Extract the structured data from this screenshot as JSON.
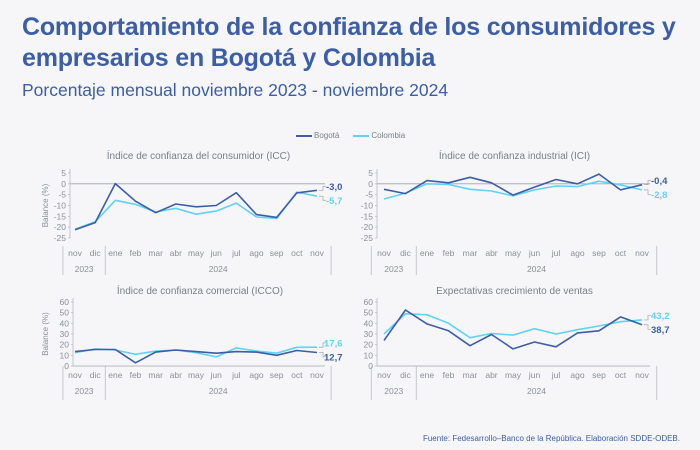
{
  "header": {
    "title": "Comportamiento de la confianza de los consumidores y empresarios en Bogotá y Colombia",
    "subtitle": "Porcentaje mensual noviembre 2023 - noviembre 2024"
  },
  "legend": [
    {
      "label": "Bogotá",
      "color": "#3b5ea6"
    },
    {
      "label": "Colombia",
      "color": "#5fd3f5"
    }
  ],
  "source": "Fuente: Fedesarrollo–Banco de la República. Elaboración SDDE-ODEB.",
  "chart_data": [
    {
      "type": "line",
      "title": "Índice de confianza del consumidor (ICC)",
      "ylabel": "Balance (%)",
      "xlabel": "",
      "ylim": [
        -25,
        5
      ],
      "yticks": [
        5,
        0,
        -5,
        -10,
        -15,
        -20,
        -25
      ],
      "zero_line": true,
      "categories": [
        "nov",
        "dic",
        "ene",
        "feb",
        "mar",
        "abr",
        "may",
        "jun",
        "jul",
        "ago",
        "sep",
        "oct",
        "nov"
      ],
      "year_groups": [
        {
          "label": "2023",
          "count": 2
        },
        {
          "label": "2024",
          "count": 11
        }
      ],
      "series": [
        {
          "name": "Bogotá",
          "color": "#3b5ea6",
          "values": [
            -21.2,
            -17.9,
            0.1,
            -8.0,
            -13.3,
            -9.3,
            -10.6,
            -10.0,
            -4.1,
            -14.2,
            -15.5,
            -4.2,
            -3.0
          ],
          "end_label": "-3,0"
        },
        {
          "name": "Colombia",
          "color": "#5fd3f5",
          "values": [
            -21.0,
            -17.5,
            -7.6,
            -9.5,
            -13.0,
            -11.3,
            -14.0,
            -12.6,
            -8.9,
            -15.3,
            -16.0,
            -3.8,
            -5.7
          ],
          "end_label": "-5,7"
        }
      ]
    },
    {
      "type": "line",
      "title": "Índice de confianza industrial (ICI)",
      "ylabel": "",
      "xlabel": "",
      "ylim": [
        -25,
        5
      ],
      "yticks": [
        5,
        0,
        -5,
        -10,
        -15,
        -20,
        -25
      ],
      "zero_line": true,
      "categories": [
        "nov",
        "dic",
        "ene",
        "feb",
        "mar",
        "abr",
        "may",
        "jun",
        "jul",
        "ago",
        "sep",
        "oct",
        "nov"
      ],
      "year_groups": [
        {
          "label": "2023",
          "count": 2
        },
        {
          "label": "2024",
          "count": 11
        }
      ],
      "series": [
        {
          "name": "Bogotá",
          "color": "#3b5ea6",
          "values": [
            -2.5,
            -4.5,
            1.5,
            0.5,
            3.0,
            0.5,
            -5.2,
            -1.5,
            2.0,
            0.0,
            4.5,
            -2.8,
            -0.4
          ],
          "end_label": "-0,4"
        },
        {
          "name": "Colombia",
          "color": "#5fd3f5",
          "values": [
            -7.0,
            -4.3,
            0.0,
            -0.3,
            -2.5,
            -3.3,
            -5.5,
            -2.8,
            -1.0,
            -1.3,
            1.2,
            -0.5,
            -2.8
          ],
          "end_label": "-2,8"
        }
      ]
    },
    {
      "type": "line",
      "title": "Índice de confianza comercial (ICCO)",
      "ylabel": "Balance (%)",
      "xlabel": "",
      "ylim": [
        0,
        60
      ],
      "yticks": [
        60,
        50,
        40,
        30,
        20,
        10,
        0
      ],
      "zero_line": false,
      "categories": [
        "nov",
        "dic",
        "ene",
        "feb",
        "mar",
        "abr",
        "may",
        "jun",
        "jul",
        "ago",
        "sep",
        "oct",
        "nov"
      ],
      "year_groups": [
        {
          "label": "2023",
          "count": 2
        },
        {
          "label": "2024",
          "count": 11
        }
      ],
      "series": [
        {
          "name": "Bogotá",
          "color": "#3b5ea6",
          "values": [
            13.5,
            15.5,
            15.5,
            3.0,
            13.0,
            15.0,
            13.5,
            12.0,
            13.5,
            13.0,
            10.0,
            14.5,
            12.7
          ],
          "end_label": "12,7"
        },
        {
          "name": "Colombia",
          "color": "#5fd3f5",
          "values": [
            12.5,
            16.0,
            15.0,
            11.0,
            14.0,
            15.0,
            12.5,
            8.5,
            17.0,
            14.0,
            12.0,
            17.5,
            17.6
          ],
          "end_label": "17,6"
        }
      ]
    },
    {
      "type": "line",
      "title": "Expectativas crecimiento de ventas",
      "ylabel": "",
      "xlabel": "",
      "ylim": [
        0,
        60
      ],
      "yticks": [
        60,
        50,
        40,
        30,
        20,
        10,
        0
      ],
      "zero_line": false,
      "categories": [
        "nov",
        "dic",
        "ene",
        "feb",
        "mar",
        "abr",
        "may",
        "jun",
        "jul",
        "ago",
        "sep",
        "oct",
        "nov"
      ],
      "year_groups": [
        {
          "label": "2023",
          "count": 2
        },
        {
          "label": "2024",
          "count": 11
        }
      ],
      "series": [
        {
          "name": "Bogotá",
          "color": "#3b5ea6",
          "values": [
            24.0,
            52.5,
            39.5,
            33.0,
            19.0,
            29.5,
            16.0,
            22.5,
            18.0,
            31.0,
            33.0,
            46.0,
            38.7
          ],
          "end_label": "38,7"
        },
        {
          "name": "Colombia",
          "color": "#5fd3f5",
          "values": [
            30.0,
            49.0,
            48.0,
            40.0,
            26.5,
            30.5,
            29.0,
            35.0,
            30.0,
            34.0,
            37.5,
            41.5,
            43.2
          ],
          "end_label": "43,2"
        }
      ]
    }
  ]
}
